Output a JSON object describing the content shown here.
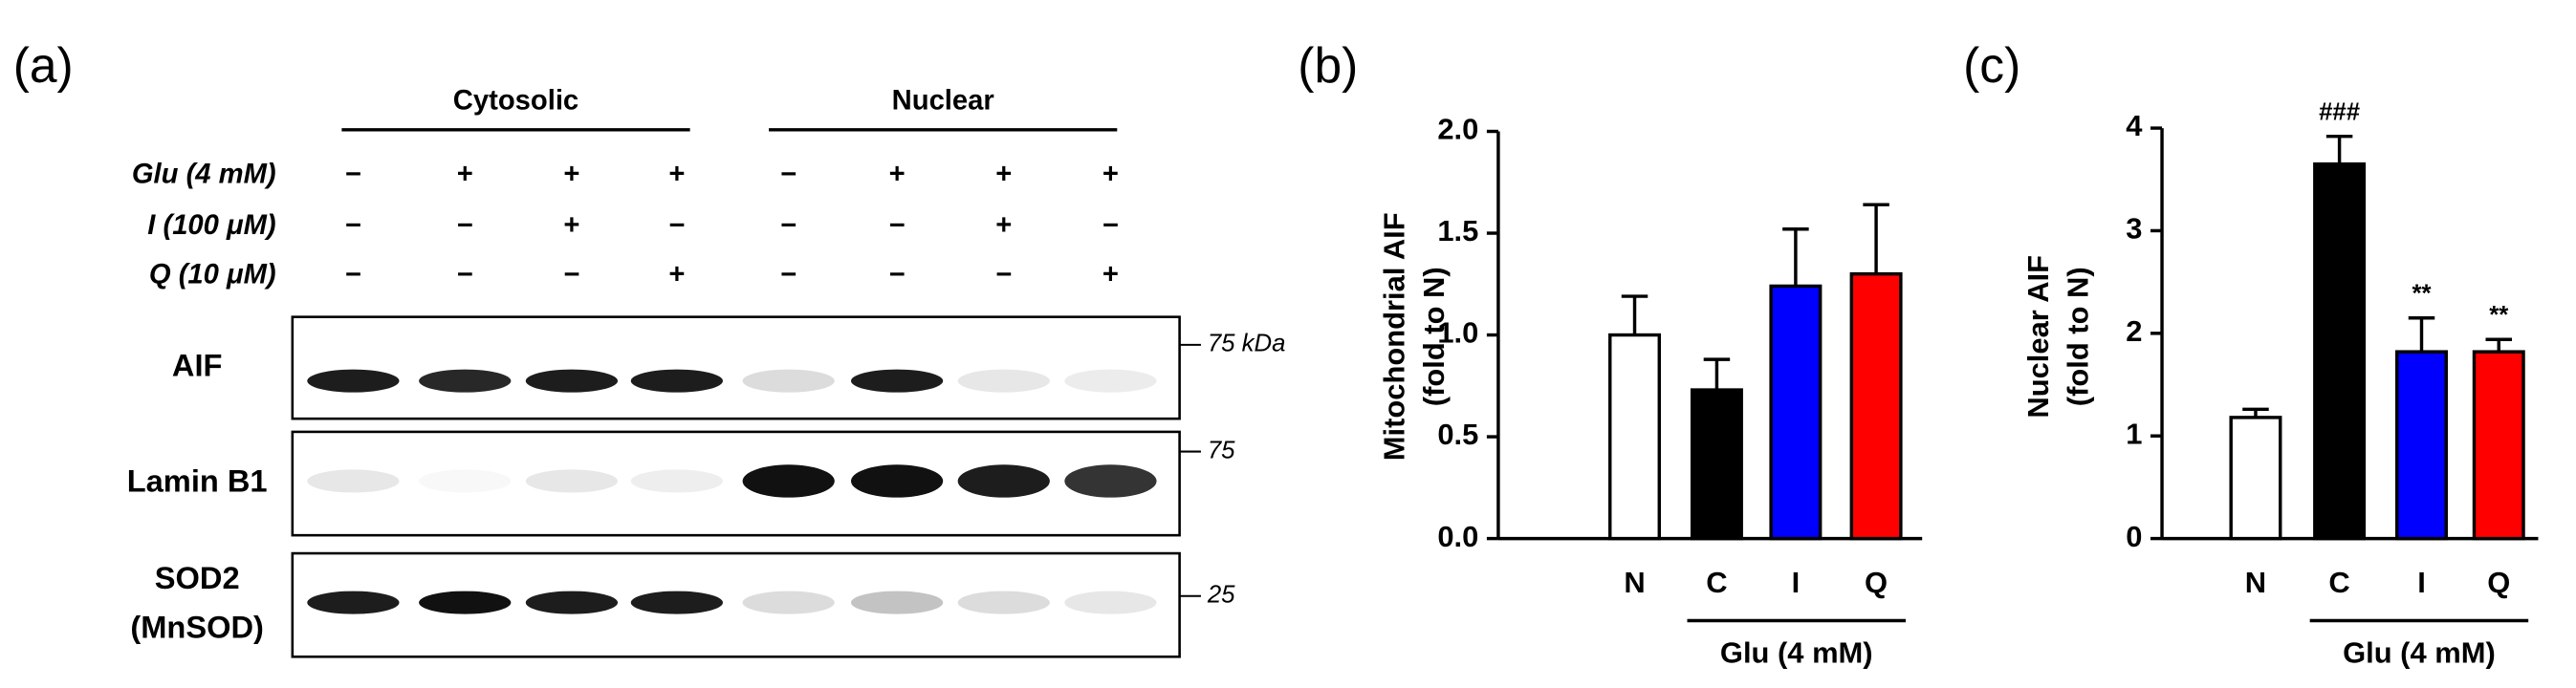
{
  "blot": {
    "panel_label": "(a)",
    "groups": [
      "Cytosolic",
      "Nuclear"
    ],
    "treatments": [
      {
        "label": "Glu (4 mM)",
        "signs": [
          "−",
          "+",
          "+",
          "+",
          "−",
          "+",
          "+",
          "+"
        ]
      },
      {
        "label": "I (100 μM)",
        "signs": [
          "−",
          "−",
          "+",
          "−",
          "−",
          "−",
          "+",
          "−"
        ]
      },
      {
        "label": "Q (10 μM)",
        "signs": [
          "−",
          "−",
          "−",
          "+",
          "−",
          "−",
          "−",
          "+"
        ]
      }
    ],
    "rows": [
      {
        "label": [
          "AIF"
        ],
        "marker": "75 kDa"
      },
      {
        "label": [
          "Lamin B1"
        ],
        "marker": "75"
      },
      {
        "label": [
          "SOD2",
          "(MnSOD)"
        ],
        "marker": "25"
      }
    ]
  },
  "chart_data": [
    {
      "type": "bar",
      "panel_label": "(b)",
      "y_label": [
        "Mitochondrial AIF",
        "(fold to N)"
      ],
      "categories": [
        "N",
        "C",
        "I",
        "Q"
      ],
      "values": [
        1.0,
        0.73,
        1.24,
        1.3
      ],
      "errors": [
        0.19,
        0.15,
        0.28,
        0.34
      ],
      "colors": [
        "#ffffff",
        "#000000",
        "#0000ff",
        "#ff0000"
      ],
      "ylim": [
        0,
        2.0
      ],
      "yticks": [
        {
          "value": 0,
          "label": "0.0"
        },
        0.5,
        {
          "value": 1,
          "label": "1.0"
        },
        1.5,
        {
          "value": 2,
          "label": "2.0"
        }
      ],
      "group_label": "Glu (4 mM)"
    },
    {
      "type": "bar",
      "panel_label": "(c)",
      "y_label": [
        "Nuclear AIF",
        "(fold to N)"
      ],
      "categories": [
        "N",
        "C",
        "I",
        "Q"
      ],
      "values": [
        1.18,
        3.65,
        1.82,
        1.82
      ],
      "errors": [
        0.08,
        0.27,
        0.33,
        0.12
      ],
      "colors": [
        "#ffffff",
        "#000000",
        "#0000ff",
        "#ff0000"
      ],
      "annotations": [
        null,
        "###",
        "**",
        "**"
      ],
      "ylim": [
        0,
        4
      ],
      "yticks": [
        0,
        1,
        2,
        3,
        4
      ],
      "group_label": "Glu (4 mM)"
    }
  ]
}
